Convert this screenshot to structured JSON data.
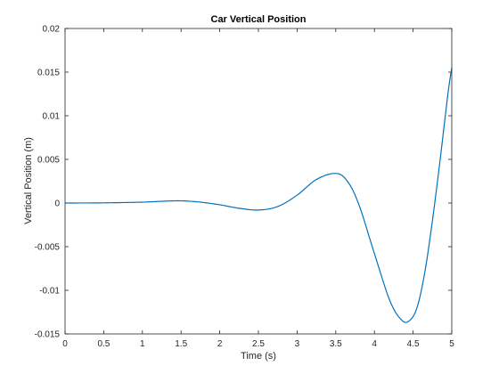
{
  "chart_data": {
    "type": "line",
    "title": "Car Vertical Position",
    "xlabel": "Time (s)",
    "ylabel": "Vertical Position (m)",
    "xlim": [
      0,
      5
    ],
    "ylim": [
      -0.015,
      0.02
    ],
    "x_ticks": [
      0,
      0.5,
      1,
      1.5,
      2,
      2.5,
      3,
      3.5,
      4,
      4.5,
      5
    ],
    "x_tick_labels": [
      "0",
      "0.5",
      "1",
      "1.5",
      "2",
      "2.5",
      "3",
      "3.5",
      "4",
      "4.5",
      "5"
    ],
    "y_ticks": [
      -0.015,
      -0.01,
      -0.005,
      0,
      0.005,
      0.01,
      0.015,
      0.02
    ],
    "y_tick_labels": [
      "-0.015",
      "-0.01",
      "-0.005",
      "0",
      "0.005",
      "0.01",
      "0.015",
      "0.02"
    ],
    "grid": false,
    "line_color": "#0072BD",
    "series": [
      {
        "x": [
          0,
          0.5,
          1,
          1.25,
          1.5,
          1.75,
          2,
          2.25,
          2.5,
          2.75,
          3,
          3.25,
          3.5,
          3.65,
          3.8,
          4,
          4.2,
          4.35,
          4.45,
          4.55,
          4.65,
          4.75,
          4.85,
          4.95,
          5
        ],
        "y": [
          0,
          2e-05,
          0.0001,
          0.0002,
          0.00025,
          0.0001,
          -0.0002,
          -0.0006,
          -0.0008,
          -0.0004,
          0.0009,
          0.0027,
          0.0034,
          0.0025,
          -0.0002,
          -0.0058,
          -0.0112,
          -0.0134,
          -0.0135,
          -0.012,
          -0.008,
          -0.002,
          0.005,
          0.0125,
          0.0155
        ]
      }
    ]
  }
}
